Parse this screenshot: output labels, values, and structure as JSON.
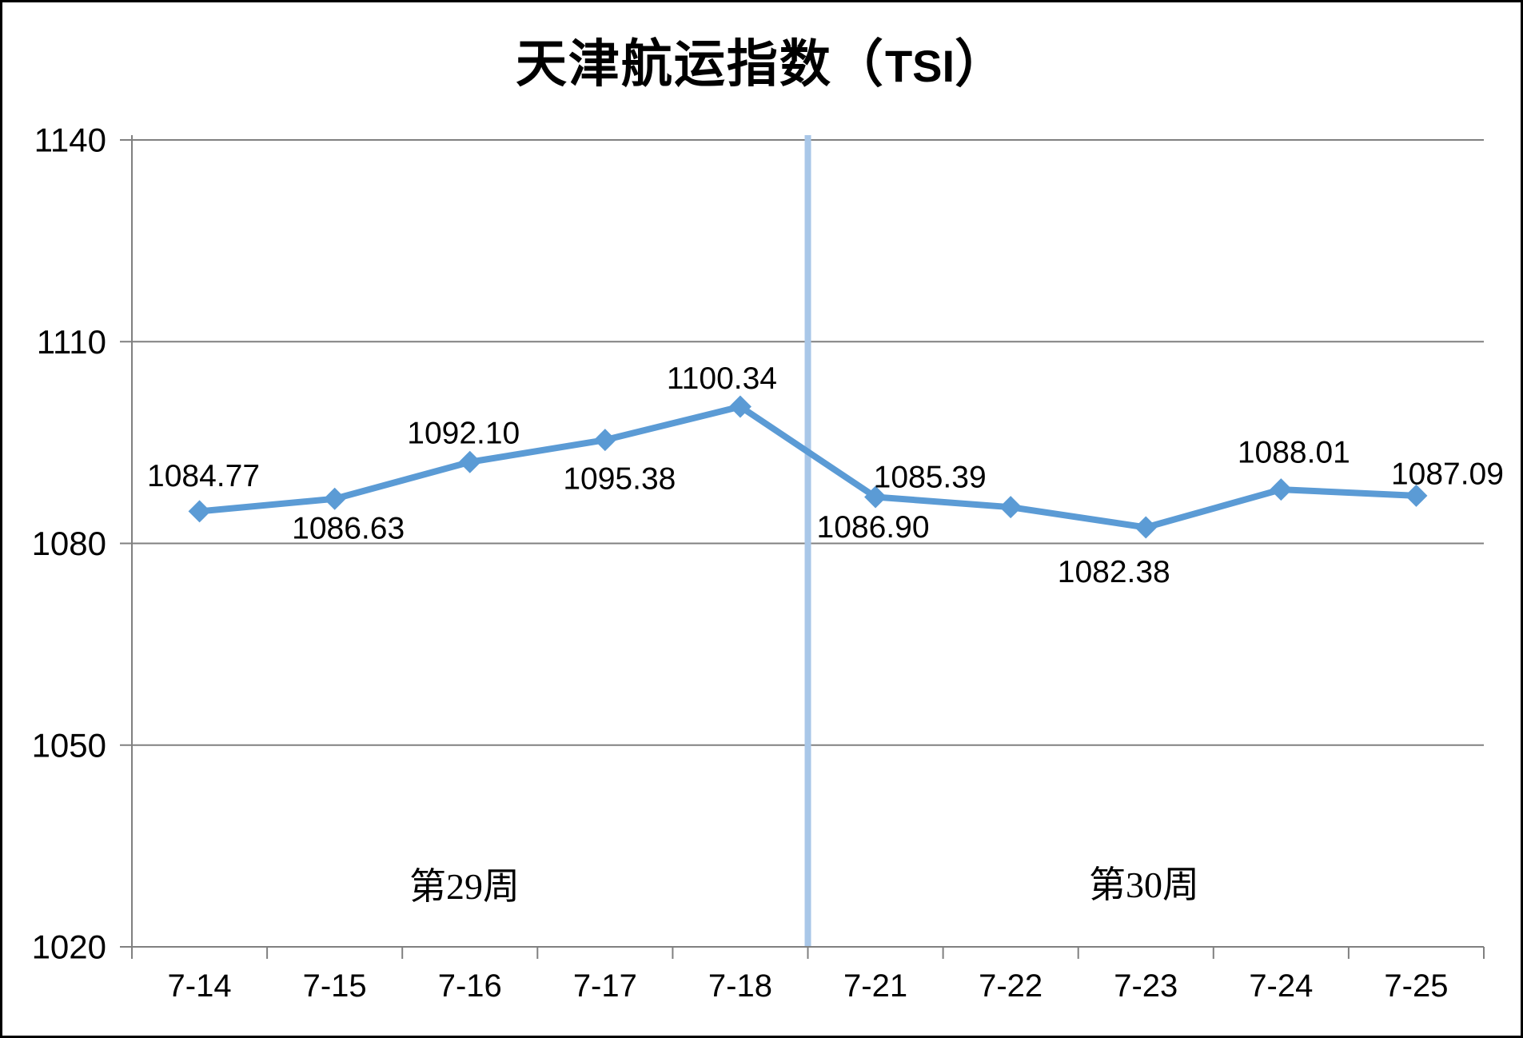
{
  "title": {
    "prefix": "天津航运指数（",
    "tsi": "TSI",
    "suffix": "）"
  },
  "chart_data": {
    "type": "line",
    "title": "天津航运指数（TSI）",
    "categories": [
      "7-14",
      "7-15",
      "7-16",
      "7-17",
      "7-18",
      "7-21",
      "7-22",
      "7-23",
      "7-24",
      "7-25"
    ],
    "values": [
      1084.77,
      1086.63,
      1092.1,
      1095.38,
      1100.34,
      1086.9,
      1085.39,
      1082.38,
      1088.01,
      1087.09
    ],
    "data_labels": [
      "1084.77",
      "1086.63",
      "1092.10",
      "1095.38",
      "1100.34",
      "1086.90",
      "1085.39",
      "1082.38",
      "1088.01",
      "1087.09"
    ],
    "label_position": [
      "above",
      "below",
      "above",
      "below",
      "above",
      "below",
      "above",
      "below",
      "above",
      "above"
    ],
    "xlabel": "",
    "ylabel": "",
    "ylim": [
      1020,
      1140
    ],
    "yticks": [
      1020,
      1050,
      1080,
      1110,
      1140
    ],
    "grid": true,
    "legend": "none",
    "marker": "diamond",
    "series_color": "#5B9BD5",
    "gridline_color": "#808080",
    "divider": {
      "after_index": 4,
      "color": "#A9C7E8"
    },
    "annotations": [
      {
        "text": "第29周",
        "region": "week-29"
      },
      {
        "text": "第30周",
        "region": "week-30"
      }
    ]
  }
}
